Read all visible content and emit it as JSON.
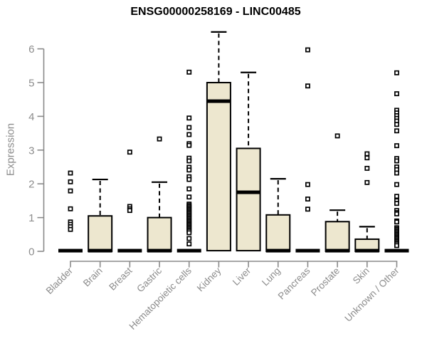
{
  "chart_data": {
    "type": "boxplot",
    "title": "ENSG00000258169 - LINC00485",
    "xlabel": "",
    "ylabel": "Expression",
    "ylim": [
      0,
      6.6
    ],
    "yticks": [
      0,
      1,
      2,
      3,
      4,
      5,
      6
    ],
    "grid": "off",
    "legend": "none",
    "categories": [
      "Bladder",
      "Brain",
      "Breast",
      "Gastric",
      "Hematopoietic cells",
      "Kidney",
      "Liver",
      "Lung",
      "Pancreas",
      "Prostate",
      "Skin",
      "Unknown / Other"
    ],
    "groups": [
      {
        "label": "Bladder",
        "collapsed": true,
        "median": 0.02,
        "outliers": [
          2.32,
          2.06,
          1.79,
          1.26,
          0.87,
          0.8,
          0.73,
          0.65
        ]
      },
      {
        "label": "Brain",
        "collapsed": false,
        "q1": 0,
        "median": 0.02,
        "q3": 1.05,
        "whisker_low": 0,
        "whisker_high": 2.13,
        "outliers": []
      },
      {
        "label": "Breast",
        "collapsed": true,
        "median": 0.02,
        "outliers": [
          2.94,
          1.33,
          1.26,
          1.21
        ]
      },
      {
        "label": "Gastric",
        "collapsed": false,
        "q1": 0,
        "median": 0.02,
        "q3": 1.0,
        "whisker_low": 0,
        "whisker_high": 2.05,
        "outliers": [
          3.33
        ]
      },
      {
        "label": "Hematopoietic cells",
        "collapsed": true,
        "median": 0.02,
        "outliers": [
          5.31,
          3.95,
          3.67,
          3.46,
          3.19,
          3.14,
          2.76,
          2.68,
          2.49,
          2.41,
          2.21,
          2.13,
          1.85,
          1.61,
          1.4,
          1.36,
          1.32,
          1.28,
          1.24,
          1.2,
          1.16,
          1.12,
          1.08,
          1.04,
          1.0,
          0.96,
          0.92,
          0.88,
          0.84,
          0.8,
          0.76,
          0.72,
          0.68,
          0.64,
          0.6,
          0.55,
          0.38,
          0.22
        ]
      },
      {
        "label": "Kidney",
        "collapsed": false,
        "q1": 0.02,
        "median": 4.45,
        "q3": 5.0,
        "whisker_low": 0,
        "whisker_high": 6.5,
        "outliers": []
      },
      {
        "label": "Liver",
        "collapsed": false,
        "q1": 0.02,
        "median": 1.75,
        "q3": 3.05,
        "whisker_low": 0,
        "whisker_high": 5.3,
        "outliers": []
      },
      {
        "label": "Lung",
        "collapsed": false,
        "q1": 0,
        "median": 0.02,
        "q3": 1.08,
        "whisker_low": 0,
        "whisker_high": 2.15,
        "outliers": []
      },
      {
        "label": "Pancreas",
        "collapsed": true,
        "median": 0.02,
        "outliers": [
          5.97,
          4.9,
          1.98,
          1.55,
          1.25
        ]
      },
      {
        "label": "Prostate",
        "collapsed": false,
        "q1": 0,
        "median": 0.02,
        "q3": 0.88,
        "whisker_low": 0,
        "whisker_high": 1.22,
        "outliers": [
          3.42
        ]
      },
      {
        "label": "Skin",
        "collapsed": false,
        "q1": 0,
        "median": 0.02,
        "q3": 0.36,
        "whisker_low": 0,
        "whisker_high": 0.73,
        "outliers": [
          2.89,
          2.77,
          2.46,
          2.04
        ]
      },
      {
        "label": "Unknown / Other",
        "collapsed": true,
        "median": 0.02,
        "outliers": [
          5.29,
          4.67,
          4.18,
          4.1,
          4.02,
          3.94,
          3.86,
          3.76,
          3.57,
          3.13,
          2.75,
          2.68,
          2.5,
          2.42,
          2.32,
          1.98,
          1.63,
          1.5,
          1.42,
          1.21,
          1.15,
          1.11,
          0.9,
          0.87,
          0.7,
          0.66,
          0.62,
          0.58,
          0.54,
          0.5,
          0.46,
          0.42,
          0.38,
          0.34,
          0.3,
          0.26,
          0.22,
          0.17
        ]
      }
    ],
    "colors": {
      "box_fill": "#EDE7CF",
      "box_stroke": "#000000",
      "median": "#000000",
      "outlier_stroke": "#000000",
      "outlier_fill": "#FFFFFF",
      "axis": "#8A8A8A",
      "tick_text": "#8C8C8C",
      "title_text": "#000000"
    }
  }
}
